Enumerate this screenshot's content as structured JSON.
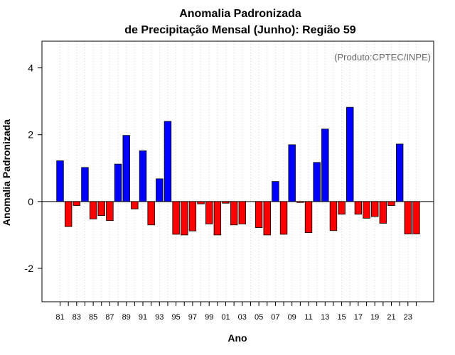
{
  "chart_data": {
    "type": "bar",
    "title": "Anomalia Padronizada",
    "subtitle": "de Precipitação Mensal (Junho): Região 59",
    "xlabel": "Ano",
    "ylabel": "Anomalia Padronizada",
    "annotation": "(Produto:CPTEC/INPE)",
    "ylim": [
      -3,
      4.8
    ],
    "yticks": [
      -2,
      0,
      2,
      4
    ],
    "ytick_labels": [
      "-2",
      "0",
      "2",
      "4"
    ],
    "categories": [
      "81",
      "82",
      "83",
      "84",
      "85",
      "86",
      "87",
      "88",
      "89",
      "90",
      "91",
      "92",
      "93",
      "94",
      "95",
      "96",
      "97",
      "98",
      "99",
      "00",
      "01",
      "02",
      "03",
      "04",
      "05",
      "06",
      "07",
      "08",
      "09",
      "10",
      "11",
      "12",
      "13",
      "14",
      "15",
      "16",
      "17",
      "18",
      "19",
      "20",
      "21",
      "22",
      "23",
      "24"
    ],
    "xtick_labels": [
      "81",
      "83",
      "85",
      "87",
      "89",
      "91",
      "93",
      "95",
      "97",
      "99",
      "01",
      "03",
      "05",
      "07",
      "09",
      "11",
      "13",
      "15",
      "17",
      "19",
      "21",
      "23"
    ],
    "values": [
      1.22,
      -0.75,
      -0.12,
      1.02,
      -0.52,
      -0.42,
      -0.57,
      1.12,
      1.98,
      -0.22,
      1.52,
      -0.7,
      0.68,
      2.4,
      -0.98,
      -1.0,
      -0.88,
      -0.07,
      -0.67,
      -1.0,
      -0.05,
      -0.7,
      -0.67,
      0.0,
      -0.78,
      -1.0,
      0.6,
      -0.98,
      1.7,
      -0.03,
      -0.93,
      1.17,
      2.17,
      -0.87,
      -0.38,
      2.82,
      -0.38,
      -0.5,
      -0.45,
      -0.65,
      -0.12,
      1.72,
      -0.97,
      -0.97
    ],
    "grid": "vertical-dotted",
    "colors": {
      "positive": "#0000ff",
      "negative": "#ff0000",
      "bar_edge": "#000000",
      "grid": "#d3d3d3",
      "zero_line": "#000000",
      "frame": "#000000",
      "annotation": "#666666"
    }
  }
}
